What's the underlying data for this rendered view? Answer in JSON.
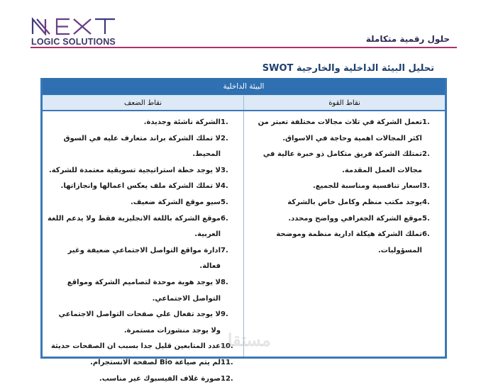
{
  "header": {
    "logo_main": "NEXT",
    "logo_sub": "LOGIC SOLUTIONS",
    "tagline": "حلول رقمية متكاملة",
    "brand_color": "#b0306d"
  },
  "title": "تحليل البيئة الداخلية والخارجية SWOT",
  "table": {
    "section": "البيئة الداخلية",
    "columns": [
      "نقاط القوة",
      "نقاط الضعف"
    ],
    "strengths": [
      {
        "n": "1.",
        "t": "تعمل الشركة في تلاث مجالات مختلفة تعبتر من اكثر المجالات اهمية وحاجة في الاسواق."
      },
      {
        "n": "2.",
        "t": "تمتلك الشركة فريق متكامل ذو خبرة عالية في مجالات العمل المقدمة."
      },
      {
        "n": "3.",
        "t": "اسعار تنافسية ومناسبة للجميع."
      },
      {
        "n": "4.",
        "t": "يوجد مكتب منظم وكامل خاص بالشركة"
      },
      {
        "n": "5.",
        "t": "موقع الشركة الجغرافي وواضح ومحدد."
      },
      {
        "n": "6.",
        "t": "تملك الشركة هيكلة ادارية منظمة وموضحة المسؤوليات."
      }
    ],
    "weaknesses": [
      {
        "n": "1.",
        "t": "الشركة ناشئة وجديدة."
      },
      {
        "n": "2.",
        "t": "لا تملك الشركة براند متعارف عليه في السوق المحيط."
      },
      {
        "n": "3.",
        "t": "لا يوجد خطة استراتيجية تسويقية معتمدة للشركة."
      },
      {
        "n": "4.",
        "t": "لا تملك الشركة ملف يعكس اعمالها وانجازاتها."
      },
      {
        "n": "5.",
        "t": "سيو موقع الشركة ضعيف."
      },
      {
        "n": "6.",
        "t": "موقع الشركة باللغة الانجليزية فقط ولا يدعم اللغة العربية."
      },
      {
        "n": "7.",
        "t": "ادارة مواقع التواصل الاجتماعي ضعيفة وغير فعالة."
      },
      {
        "n": "8.",
        "t": "لا يوجد هوية موحدة لتصاميم الشركة ومواقع التواصل الاجتماعي."
      },
      {
        "n": "9.",
        "t": "لا يوجد تفعال علي صفحات التواصل الاجتماعي ولا يوجد منشورات مستمرة."
      },
      {
        "n": "10.",
        "t": "عدد المتابعين قليل جدا بسبب ان الصفحات حديثة"
      },
      {
        "n": "11.",
        "t": "لم يتم صياغة Bio لصفحة الانستجرام."
      },
      {
        "n": "12.",
        "t": "صورة غلاف الفيسبوك غير مناسب."
      }
    ]
  },
  "watermark": "mostaql.com"
}
